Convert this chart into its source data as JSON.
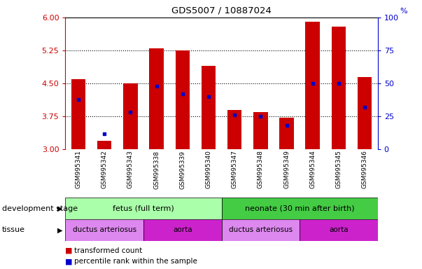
{
  "title": "GDS5007 / 10887024",
  "samples": [
    "GSM995341",
    "GSM995342",
    "GSM995343",
    "GSM995338",
    "GSM995339",
    "GSM995340",
    "GSM995347",
    "GSM995348",
    "GSM995349",
    "GSM995344",
    "GSM995345",
    "GSM995346"
  ],
  "transformed_count": [
    4.6,
    3.2,
    4.5,
    5.3,
    5.25,
    4.9,
    3.9,
    3.85,
    3.72,
    5.9,
    5.8,
    4.65
  ],
  "percentile_rank": [
    38,
    12,
    28,
    48,
    42,
    40,
    26,
    25,
    18,
    50,
    50,
    32
  ],
  "ylim_left": [
    3,
    6
  ],
  "ylim_right": [
    0,
    100
  ],
  "yticks_left": [
    3,
    3.75,
    4.5,
    5.25,
    6
  ],
  "yticks_right": [
    0,
    25,
    50,
    75,
    100
  ],
  "bar_color": "#cc0000",
  "dot_color": "#0000cc",
  "bar_bottom": 3.0,
  "fetus_color": "#aaffaa",
  "neonate_color": "#44cc44",
  "tissue_light_color": "#dd88ee",
  "tissue_dark_color": "#cc22cc",
  "tick_bg_color": "#bbbbbb",
  "legend_items": [
    {
      "label": "transformed count",
      "color": "#cc0000"
    },
    {
      "label": "percentile rank within the sample",
      "color": "#0000cc"
    }
  ]
}
